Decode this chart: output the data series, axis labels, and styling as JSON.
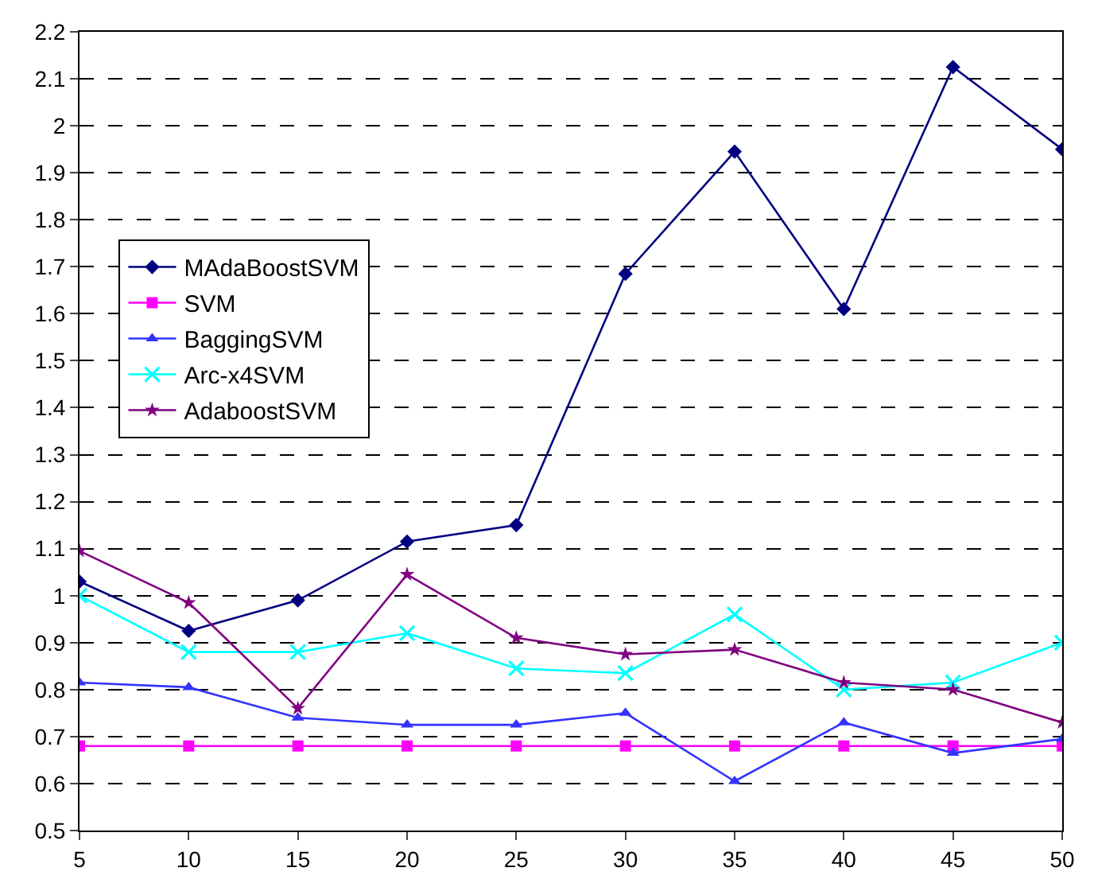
{
  "chart_data": {
    "type": "line",
    "x": [
      5,
      10,
      15,
      20,
      25,
      30,
      35,
      40,
      45,
      50
    ],
    "xlim": [
      5,
      50
    ],
    "xticks": [
      5,
      10,
      15,
      20,
      25,
      30,
      35,
      40,
      45,
      50
    ],
    "ylim": [
      0.5,
      2.2
    ],
    "yticks": [
      0.5,
      0.6,
      0.7,
      0.8,
      0.9,
      1,
      1.1,
      1.2,
      1.3,
      1.4,
      1.5,
      1.6,
      1.7,
      1.8,
      1.9,
      2,
      2.1,
      2.2
    ],
    "grid": "y",
    "legend": "left",
    "line_style": "solid",
    "series": [
      {
        "name": "MAdaBoostSVM",
        "color": "#000080",
        "marker": "diamond",
        "values": [
          1.03,
          0.925,
          0.99,
          1.115,
          1.15,
          1.685,
          1.945,
          1.61,
          2.125,
          1.95
        ]
      },
      {
        "name": "SVM",
        "color": "#ff00ff",
        "marker": "square",
        "values": [
          0.68,
          0.68,
          0.68,
          0.68,
          0.68,
          0.68,
          0.68,
          0.68,
          0.68,
          0.68
        ]
      },
      {
        "name": "BaggingSVM",
        "color": "#3333ff",
        "marker": "triangle",
        "values": [
          0.815,
          0.805,
          0.74,
          0.725,
          0.725,
          0.75,
          0.605,
          0.73,
          0.665,
          0.695
        ]
      },
      {
        "name": "Arc-x4SVM",
        "color": "#00ffff",
        "marker": "cross",
        "values": [
          1.0,
          0.88,
          0.88,
          0.92,
          0.845,
          0.835,
          0.96,
          0.8,
          0.815,
          0.9
        ]
      },
      {
        "name": "AdaboostSVM",
        "color": "#800080",
        "marker": "star",
        "values": [
          1.095,
          0.985,
          0.76,
          1.045,
          0.91,
          0.875,
          0.885,
          0.815,
          0.8,
          0.73
        ]
      }
    ]
  }
}
